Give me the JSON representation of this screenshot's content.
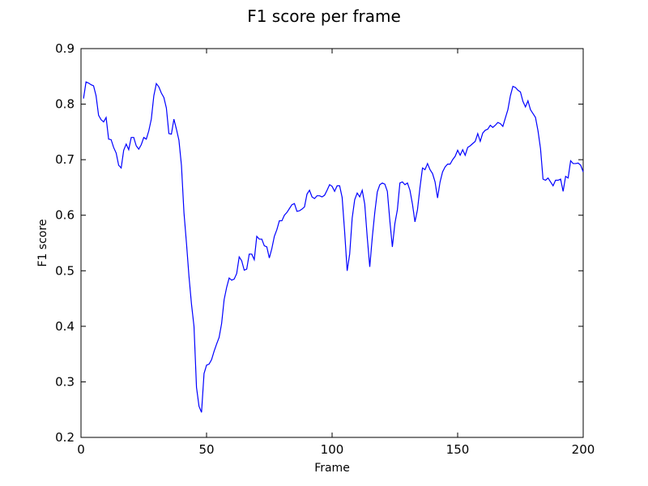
{
  "chart_data": {
    "type": "line",
    "title": "F1 score per frame",
    "xlabel": "Frame",
    "ylabel": "F1 score",
    "xlim": [
      0,
      200
    ],
    "ylim": [
      0.2,
      0.9
    ],
    "x_ticks": [
      "0",
      "50",
      "100",
      "150",
      "200"
    ],
    "y_ticks": [
      "0.2",
      "0.3",
      "0.4",
      "0.5",
      "0.6",
      "0.7",
      "0.8",
      "0.9"
    ],
    "grid": false,
    "line_color": "#0000ff",
    "x": [
      1,
      2,
      3,
      4,
      5,
      6,
      7,
      8,
      9,
      10,
      11,
      12,
      13,
      14,
      15,
      16,
      17,
      18,
      19,
      20,
      21,
      22,
      23,
      24,
      25,
      26,
      27,
      28,
      29,
      30,
      31,
      32,
      33,
      34,
      35,
      36,
      37,
      38,
      39,
      40,
      41,
      42,
      43,
      44,
      45,
      46,
      47,
      48,
      49,
      50,
      51,
      52,
      53,
      54,
      55,
      56,
      57,
      58,
      59,
      60,
      61,
      62,
      63,
      64,
      65,
      66,
      67,
      68,
      69,
      70,
      71,
      72,
      73,
      74,
      75,
      76,
      77,
      78,
      79,
      80,
      81,
      82,
      83,
      84,
      85,
      86,
      87,
      88,
      89,
      90,
      91,
      92,
      93,
      94,
      95,
      96,
      97,
      98,
      99,
      100,
      101,
      102,
      103,
      104,
      105,
      106,
      107,
      108,
      109,
      110,
      111,
      112,
      113,
      114,
      115,
      116,
      117,
      118,
      119,
      120,
      121,
      122,
      123,
      124,
      125,
      126,
      127,
      128,
      129,
      130,
      131,
      132,
      133,
      134,
      135,
      136,
      137,
      138,
      139,
      140,
      141,
      142,
      143,
      144,
      145,
      146,
      147,
      148,
      149,
      150,
      151,
      152,
      153,
      154,
      155,
      156,
      157,
      158,
      159,
      160,
      161,
      162,
      163,
      164,
      165,
      166,
      167,
      168,
      169,
      170,
      171,
      172,
      173,
      174,
      175,
      176,
      177,
      178,
      179,
      180,
      181,
      182,
      183,
      184,
      185,
      186,
      187,
      188,
      189,
      190,
      191,
      192,
      193,
      194,
      195,
      196,
      197,
      198,
      199,
      200
    ],
    "y": [
      0.81,
      0.84,
      0.838,
      0.835,
      0.833,
      0.815,
      0.78,
      0.772,
      0.768,
      0.776,
      0.737,
      0.736,
      0.722,
      0.712,
      0.69,
      0.685,
      0.717,
      0.728,
      0.718,
      0.74,
      0.74,
      0.725,
      0.719,
      0.727,
      0.74,
      0.737,
      0.752,
      0.773,
      0.815,
      0.837,
      0.831,
      0.82,
      0.812,
      0.793,
      0.747,
      0.746,
      0.773,
      0.755,
      0.735,
      0.69,
      0.605,
      0.55,
      0.49,
      0.44,
      0.4,
      0.29,
      0.256,
      0.245,
      0.315,
      0.33,
      0.332,
      0.34,
      0.355,
      0.368,
      0.38,
      0.405,
      0.448,
      0.47,
      0.487,
      0.483,
      0.485,
      0.495,
      0.525,
      0.518,
      0.501,
      0.503,
      0.53,
      0.53,
      0.52,
      0.562,
      0.557,
      0.557,
      0.545,
      0.543,
      0.523,
      0.54,
      0.562,
      0.574,
      0.59,
      0.59,
      0.6,
      0.605,
      0.612,
      0.619,
      0.621,
      0.607,
      0.608,
      0.611,
      0.615,
      0.638,
      0.645,
      0.633,
      0.63,
      0.635,
      0.635,
      0.633,
      0.636,
      0.645,
      0.655,
      0.652,
      0.643,
      0.653,
      0.653,
      0.632,
      0.57,
      0.5,
      0.53,
      0.595,
      0.628,
      0.64,
      0.633,
      0.645,
      0.62,
      0.56,
      0.507,
      0.56,
      0.605,
      0.642,
      0.655,
      0.658,
      0.656,
      0.643,
      0.59,
      0.543,
      0.585,
      0.61,
      0.658,
      0.66,
      0.655,
      0.658,
      0.645,
      0.62,
      0.588,
      0.61,
      0.65,
      0.685,
      0.682,
      0.693,
      0.682,
      0.675,
      0.66,
      0.631,
      0.66,
      0.678,
      0.687,
      0.692,
      0.692,
      0.7,
      0.706,
      0.717,
      0.708,
      0.718,
      0.708,
      0.722,
      0.725,
      0.729,
      0.733,
      0.747,
      0.733,
      0.748,
      0.753,
      0.755,
      0.762,
      0.758,
      0.762,
      0.767,
      0.765,
      0.76,
      0.775,
      0.79,
      0.815,
      0.832,
      0.83,
      0.825,
      0.822,
      0.805,
      0.795,
      0.806,
      0.79,
      0.783,
      0.776,
      0.752,
      0.72,
      0.665,
      0.663,
      0.667,
      0.66,
      0.653,
      0.663,
      0.663,
      0.665,
      0.643,
      0.67,
      0.667,
      0.698,
      0.693,
      0.693,
      0.694,
      0.69,
      0.678
    ]
  }
}
